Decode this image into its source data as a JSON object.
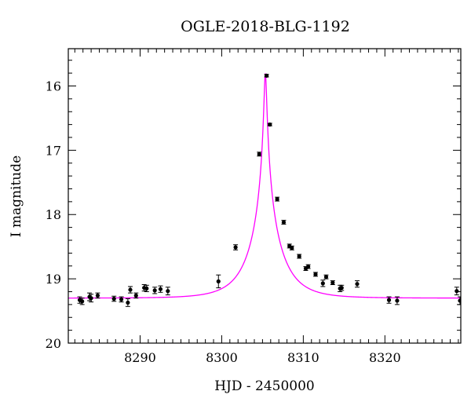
{
  "chart_data": {
    "type": "scatter",
    "title": "OGLE-2018-BLG-1192",
    "xlabel": "HJD - 2450000",
    "ylabel": "I magnitude",
    "xlim": [
      8281.2,
      8329.3
    ],
    "ylim": [
      20.0,
      15.42
    ],
    "y_inverted": true,
    "x_ticks": [
      8290,
      8300,
      8310,
      8320
    ],
    "y_ticks": [
      16,
      17,
      18,
      19,
      20
    ],
    "grid": false,
    "model_color": "#ff00ff",
    "point_color": "#000000",
    "model": {
      "t0": 8305.35,
      "u0": 0.04,
      "tE": 3.7,
      "baseline_mag": 19.3
    },
    "series": [
      {
        "points": [
          {
            "x": 8282.6,
            "y": 19.33,
            "err": 0.05
          },
          {
            "x": 8282.9,
            "y": 19.35,
            "err": 0.05
          },
          {
            "x": 8283.8,
            "y": 19.28,
            "err": 0.06
          },
          {
            "x": 8284.0,
            "y": 19.3,
            "err": 0.06
          },
          {
            "x": 8284.8,
            "y": 19.26,
            "err": 0.04
          },
          {
            "x": 8286.8,
            "y": 19.31,
            "err": 0.04
          },
          {
            "x": 8287.7,
            "y": 19.32,
            "err": 0.04
          },
          {
            "x": 8288.5,
            "y": 19.37,
            "err": 0.06
          },
          {
            "x": 8288.8,
            "y": 19.17,
            "err": 0.05
          },
          {
            "x": 8289.5,
            "y": 19.26,
            "err": 0.04
          },
          {
            "x": 8290.5,
            "y": 19.14,
            "err": 0.05
          },
          {
            "x": 8290.8,
            "y": 19.15,
            "err": 0.05
          },
          {
            "x": 8291.8,
            "y": 19.18,
            "err": 0.05
          },
          {
            "x": 8292.5,
            "y": 19.16,
            "err": 0.05
          },
          {
            "x": 8293.4,
            "y": 19.19,
            "err": 0.06
          },
          {
            "x": 8299.6,
            "y": 19.04,
            "err": 0.1
          },
          {
            "x": 8301.7,
            "y": 18.51,
            "err": 0.04
          },
          {
            "x": 8304.6,
            "y": 17.06,
            "err": 0.03
          },
          {
            "x": 8305.5,
            "y": 15.84,
            "err": 0.02
          },
          {
            "x": 8305.9,
            "y": 16.6,
            "err": 0.02
          },
          {
            "x": 8306.8,
            "y": 17.76,
            "err": 0.03
          },
          {
            "x": 8307.6,
            "y": 18.12,
            "err": 0.03
          },
          {
            "x": 8308.3,
            "y": 18.49,
            "err": 0.03
          },
          {
            "x": 8308.6,
            "y": 18.52,
            "err": 0.03
          },
          {
            "x": 8309.5,
            "y": 18.65,
            "err": 0.03
          },
          {
            "x": 8310.3,
            "y": 18.84,
            "err": 0.03
          },
          {
            "x": 8310.6,
            "y": 18.81,
            "err": 0.03
          },
          {
            "x": 8311.5,
            "y": 18.93,
            "err": 0.03
          },
          {
            "x": 8312.4,
            "y": 19.07,
            "err": 0.05
          },
          {
            "x": 8312.8,
            "y": 18.97,
            "err": 0.03
          },
          {
            "x": 8313.6,
            "y": 19.06,
            "err": 0.03
          },
          {
            "x": 8314.5,
            "y": 19.15,
            "err": 0.05
          },
          {
            "x": 8314.7,
            "y": 19.14,
            "err": 0.04
          },
          {
            "x": 8316.6,
            "y": 19.08,
            "err": 0.05
          },
          {
            "x": 8320.5,
            "y": 19.33,
            "err": 0.05
          },
          {
            "x": 8321.5,
            "y": 19.34,
            "err": 0.06
          },
          {
            "x": 8328.8,
            "y": 19.19,
            "err": 0.06
          },
          {
            "x": 8329.2,
            "y": 19.34,
            "err": 0.06
          }
        ]
      }
    ]
  }
}
